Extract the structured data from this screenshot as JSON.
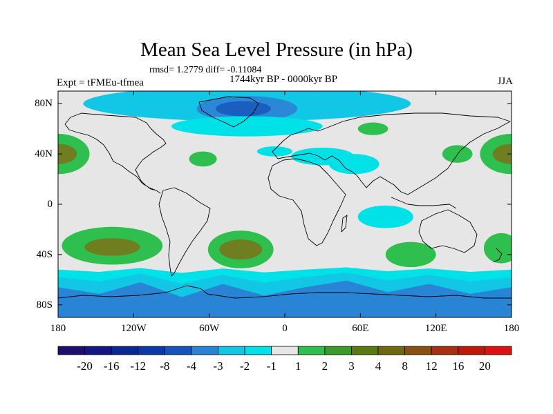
{
  "title": "Mean Sea Level Pressure (in hPa)",
  "stats": "rmsd= 1.2779 diff= -0.11084",
  "subtitle": "1744kyr BP - 0000kyr BP",
  "experiment": "Expt = tFMEu-tfmea",
  "season": "JJA",
  "map": {
    "projection": "cylindrical-equidistant",
    "lon_range": [
      -180,
      180
    ],
    "lat_range": [
      -90,
      90
    ],
    "lat_ticks": [
      {
        "value": 80,
        "label": "80N"
      },
      {
        "value": 40,
        "label": "40N"
      },
      {
        "value": 0,
        "label": "0"
      },
      {
        "value": -40,
        "label": "40S"
      },
      {
        "value": -80,
        "label": "80S"
      }
    ],
    "lon_ticks": [
      {
        "value": -180,
        "label": "180"
      },
      {
        "value": -120,
        "label": "120W"
      },
      {
        "value": -60,
        "label": "60W"
      },
      {
        "value": 0,
        "label": "0"
      },
      {
        "value": 60,
        "label": "60E"
      },
      {
        "value": 120,
        "label": "120E"
      },
      {
        "value": 180,
        "label": "180"
      }
    ],
    "background_color": "#e6e6e6",
    "anomaly_regions": [
      {
        "name": "north-polar-band-low",
        "class": "-3 to -2",
        "color": "#12c6e5",
        "lon": -30,
        "lat": 80,
        "rlon": 130,
        "rlat": 14
      },
      {
        "name": "greenland-low",
        "class": "-4 to -3",
        "color": "#2a88d6",
        "lon": -30,
        "lat": 76,
        "rlon": 40,
        "rlat": 10
      },
      {
        "name": "greenland-low-core",
        "class": "-8 to -4",
        "color": "#1a5ec0",
        "lon": -33,
        "lat": 76,
        "rlon": 22,
        "rlat": 6
      },
      {
        "name": "north-atlantic-low",
        "class": "-2 to -1",
        "color": "#00e1e8",
        "lon": -30,
        "lat": 62,
        "rlon": 60,
        "rlat": 8
      },
      {
        "name": "europe-low",
        "class": "-2 to -1",
        "color": "#00e1e8",
        "lon": -8,
        "lat": 42,
        "rlon": 14,
        "rlat": 4
      },
      {
        "name": "mediterranean-low",
        "class": "-2 to -1",
        "color": "#00e1e8",
        "lon": 30,
        "lat": 38,
        "rlon": 25,
        "rlat": 7
      },
      {
        "name": "arabia-low",
        "class": "-2 to -1",
        "color": "#00e1e8",
        "lon": 55,
        "lat": 32,
        "rlon": 20,
        "rlat": 8
      },
      {
        "name": "indian-ocean-low",
        "class": "-2 to -1",
        "color": "#00e1e8",
        "lon": 80,
        "lat": -10,
        "rlon": 22,
        "rlat": 9
      },
      {
        "name": "north-pacific-high-west",
        "class": "2 to 3",
        "color": "#2ebf4f",
        "lon": -180,
        "lat": 40,
        "rlon": 25,
        "rlat": 16
      },
      {
        "name": "north-pacific-high-west-core",
        "class": "3 to 4",
        "color": "#6f7e20",
        "lon": -180,
        "lat": 40,
        "rlon": 15,
        "rlat": 8
      },
      {
        "name": "north-pacific-high-east",
        "class": "2 to 3",
        "color": "#2ebf4f",
        "lon": 180,
        "lat": 40,
        "rlon": 25,
        "rlat": 16
      },
      {
        "name": "north-pacific-high-east-core",
        "class": "3 to 4",
        "color": "#6f7e20",
        "lon": 180,
        "lat": 40,
        "rlon": 15,
        "rlat": 8
      },
      {
        "name": "japan-high",
        "class": "2 to 3",
        "color": "#2ebf4f",
        "lon": 137,
        "lat": 40,
        "rlon": 12,
        "rlat": 7
      },
      {
        "name": "north-atlantic-high",
        "class": "2 to 3",
        "color": "#2ebf4f",
        "lon": -65,
        "lat": 36,
        "rlon": 11,
        "rlat": 6
      },
      {
        "name": "asia-high",
        "class": "2 to 3",
        "color": "#2ebf4f",
        "lon": 70,
        "lat": 60,
        "rlon": 12,
        "rlat": 5
      },
      {
        "name": "south-pacific-high",
        "class": "2 to 3",
        "color": "#2ebf4f",
        "lon": -137,
        "lat": -33,
        "rlon": 40,
        "rlat": 15
      },
      {
        "name": "south-pacific-high-core",
        "class": "3 to 4",
        "color": "#6f7e20",
        "lon": -137,
        "lat": -34,
        "rlon": 22,
        "rlat": 7
      },
      {
        "name": "south-atlantic-high",
        "class": "2 to 3",
        "color": "#2ebf4f",
        "lon": -35,
        "lat": -36,
        "rlon": 26,
        "rlat": 15
      },
      {
        "name": "south-atlantic-high-core",
        "class": "3 to 4",
        "color": "#6f7e20",
        "lon": -35,
        "lat": -36,
        "rlon": 17,
        "rlat": 8
      },
      {
        "name": "south-indian-high",
        "class": "2 to 3",
        "color": "#2ebf4f",
        "lon": 100,
        "lat": -40,
        "rlon": 20,
        "rlat": 10
      },
      {
        "name": "south-tasman-high",
        "class": "2 to 3",
        "color": "#2ebf4f",
        "lon": 172,
        "lat": -35,
        "rlon": 14,
        "rlat": 12
      }
    ]
  },
  "colorbar": {
    "colors": [
      "#200d70",
      "#141684",
      "#0b2796",
      "#0b3aa8",
      "#1554be",
      "#2a84d5",
      "#12c6e5",
      "#00e1e8",
      "#e6e6e6",
      "#2ebf4f",
      "#3a9a2a",
      "#5a7a10",
      "#6f6810",
      "#8a5010",
      "#a83010",
      "#c01808",
      "#e01010"
    ],
    "labels": [
      "-20",
      "-16",
      "-12",
      "-8",
      "-4",
      "-3",
      "-2",
      "-1",
      "1",
      "2",
      "3",
      "4",
      "8",
      "12",
      "16",
      "20"
    ]
  }
}
